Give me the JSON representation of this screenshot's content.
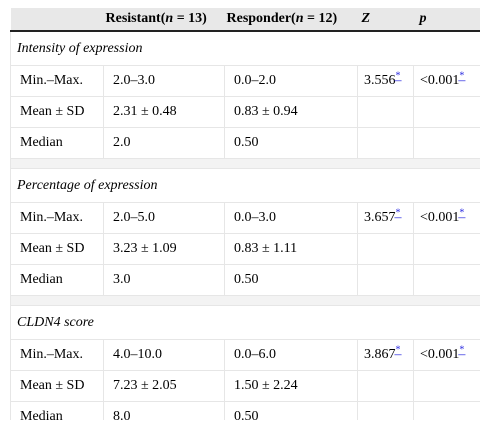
{
  "header": {
    "col1": "",
    "col2_text": "Resistant(",
    "col2_n": "n",
    "col2_count": " = 13)",
    "col3_text": "Responder(",
    "col3_n": "n",
    "col3_count": " = 12)",
    "col4": "Z",
    "col5": "p"
  },
  "sections": [
    {
      "title": "Intensity of expression",
      "rows": [
        {
          "label": "Min.–Max.",
          "resistant": "2.0–3.0",
          "responder": "0.0–2.0",
          "z": "3.556",
          "p": "<0.001"
        },
        {
          "label": "Mean ± SD",
          "resistant": "2.31 ± 0.48",
          "responder": "0.83 ± 0.94",
          "z": "",
          "p": ""
        },
        {
          "label": "Median",
          "resistant": "2.0",
          "responder": "0.50",
          "z": "",
          "p": ""
        }
      ]
    },
    {
      "title": "Percentage of expression",
      "rows": [
        {
          "label": "Min.–Max.",
          "resistant": "2.0–5.0",
          "responder": "0.0–3.0",
          "z": "3.657",
          "p": "<0.001"
        },
        {
          "label": "Mean ± SD",
          "resistant": "3.23 ± 1.09",
          "responder": "0.83 ± 1.11",
          "z": "",
          "p": ""
        },
        {
          "label": "Median",
          "resistant": "3.0",
          "responder": "0.50",
          "z": "",
          "p": ""
        }
      ]
    },
    {
      "title": "CLDN4 score",
      "rows": [
        {
          "label": "Min.–Max.",
          "resistant": "4.0–10.0",
          "responder": "0.0–6.0",
          "z": "3.867",
          "p": "<0.001"
        },
        {
          "label": "Mean ± SD",
          "resistant": "7.23 ± 2.05",
          "responder": "1.50 ± 2.24",
          "z": "",
          "p": ""
        },
        {
          "label": "Median",
          "resistant": "8.0",
          "responder": "0.50",
          "z": "",
          "p": ""
        }
      ]
    }
  ],
  "footnote_marker": "*",
  "colors": {
    "header_bg": "#e8e8e8",
    "link_blue": "#2a2ae0",
    "grid": "#e6e6e6"
  }
}
